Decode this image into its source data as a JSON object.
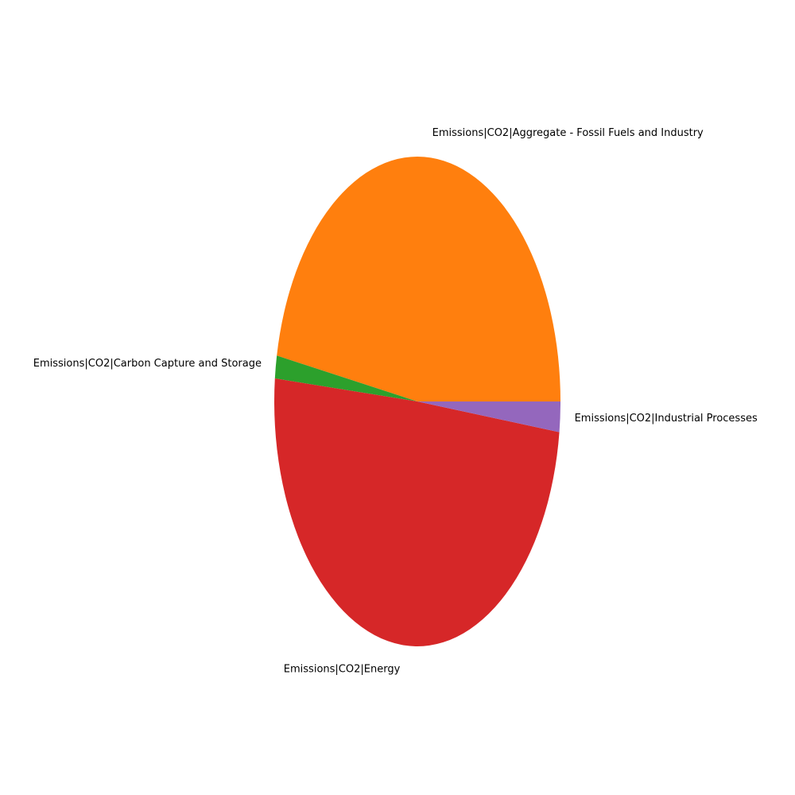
{
  "chart_data": {
    "type": "pie",
    "title": "",
    "legend": "none",
    "slices": [
      {
        "label": "Emissions|CO2|Aggregate - Fossil Fuels and Industry",
        "value": 47.0,
        "color": "#ff7f0e"
      },
      {
        "label": "Emissions|CO2|Carbon Capture and Storage",
        "value": 1.5,
        "color": "#2ca02c"
      },
      {
        "label": "Emissions|CO2|Energy",
        "value": 49.5,
        "color": "#d62728"
      },
      {
        "label": "Emissions|CO2|Industrial Processes",
        "value": 2.0,
        "color": "#9467bd"
      }
    ]
  }
}
